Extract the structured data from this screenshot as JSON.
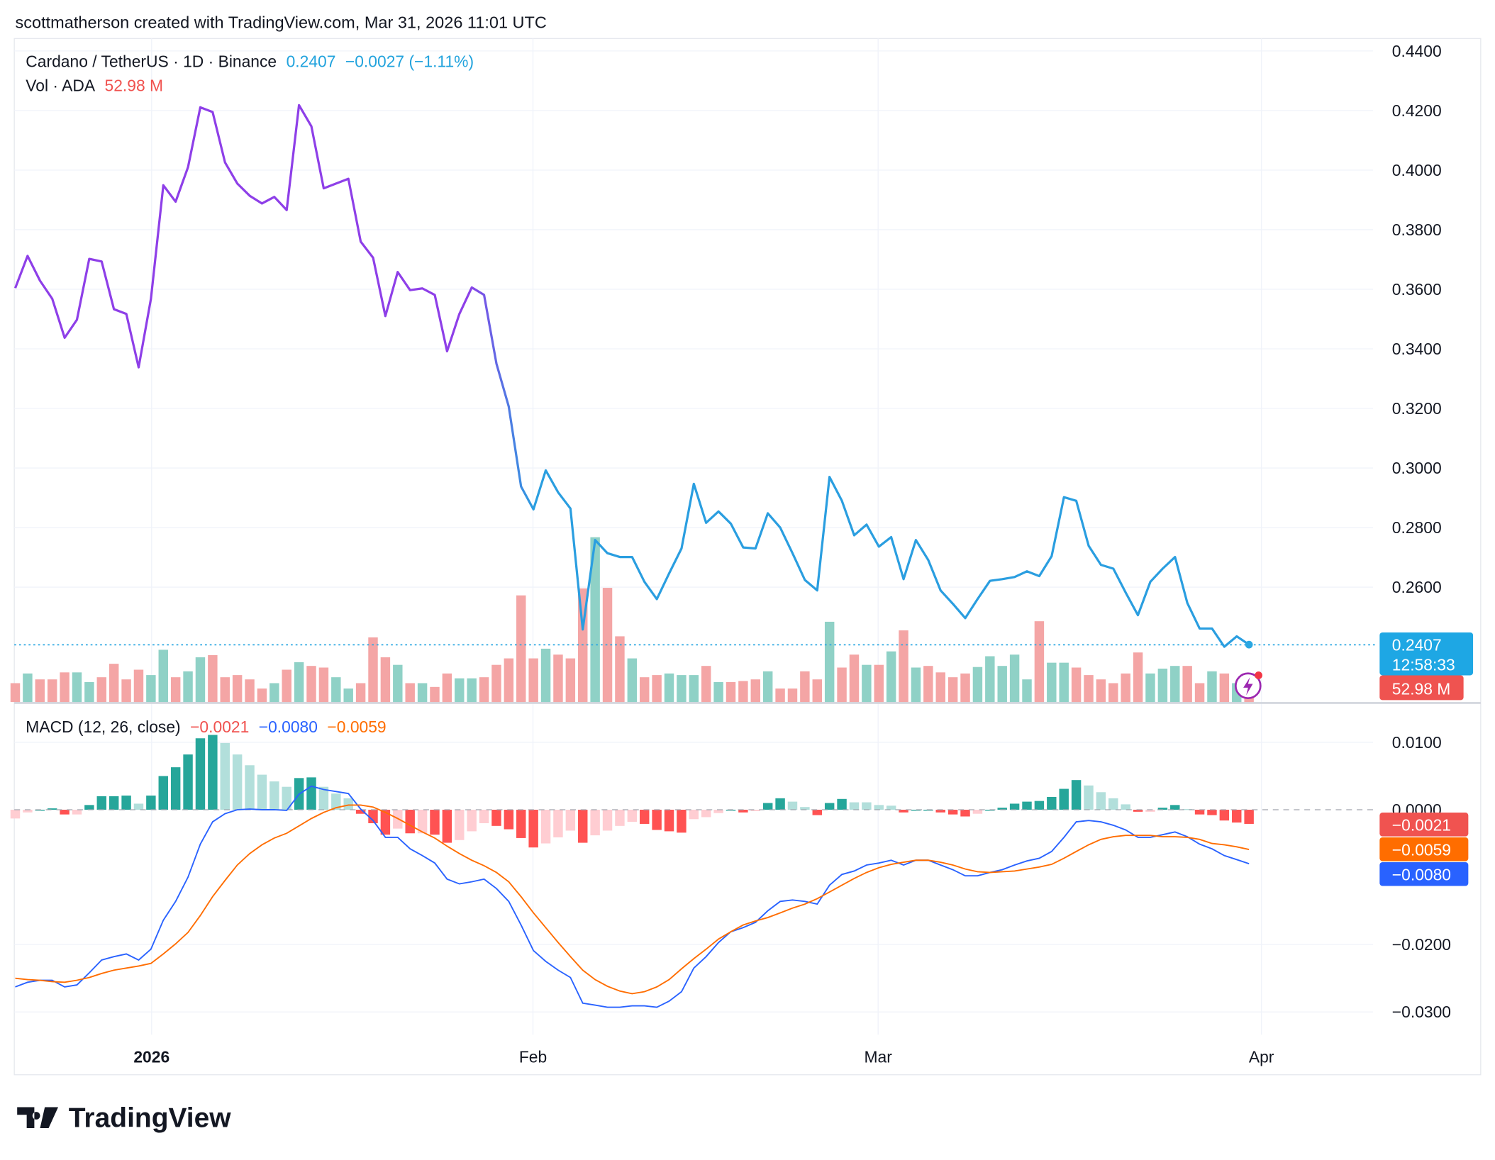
{
  "header": {
    "attribution": "scottmatherson created with TradingView.com, Mar 31, 2026 11:01 UTC"
  },
  "legend": {
    "symbol": "Cardano / TetherUS · 1D · Binance",
    "last": "0.2407",
    "change": "−0.0027 (−1.11%)",
    "vol_label": "Vol · ADA",
    "vol_value": "52.98 M"
  },
  "macd_legend": {
    "label": "MACD (12, 26, close)",
    "hist": "−0.0021",
    "macd": "−0.0080",
    "signal": "−0.0059"
  },
  "price_axis": [
    "0.4400",
    "0.4200",
    "0.4000",
    "0.3800",
    "0.3600",
    "0.3400",
    "0.3200",
    "0.3000",
    "0.2800",
    "0.2600"
  ],
  "macd_axis": [
    "0.0100",
    "0.0000",
    "−0.0200",
    "−0.0300"
  ],
  "tags": {
    "price": "0.2407",
    "countdown": "12:58:33",
    "volume": "52.98 M",
    "hist": "−0.0021",
    "signal": "−0.0059",
    "macd": "−0.0080"
  },
  "time_axis": {
    "y2026": "2026",
    "feb": "Feb",
    "mar": "Mar",
    "apr": "Apr"
  },
  "footer": {
    "logo": "TradingView"
  },
  "colors": {
    "price_early": "#8e3fe8",
    "price_late": "#2a9ee0",
    "up_vol": "#8fd1c6",
    "down_vol": "#f4a5a5",
    "macd": "#2962ff",
    "signal": "#ff6d00",
    "hist_up_strong": "#26a69a",
    "hist_up_weak": "#b2dfdb",
    "hist_down_strong": "#ff5252",
    "hist_down_weak": "#ffcdd2"
  },
  "chart_data": {
    "type": "line",
    "x_range": [
      "2025-12-21",
      "2026-03-31"
    ],
    "price_ylim": [
      0.24,
      0.44
    ],
    "close": [
      0.3604,
      0.3712,
      0.3629,
      0.3568,
      0.3437,
      0.3498,
      0.3702,
      0.3693,
      0.3533,
      0.3517,
      0.3338,
      0.3568,
      0.3949,
      0.3894,
      0.401,
      0.4211,
      0.4195,
      0.4026,
      0.3955,
      0.3914,
      0.3888,
      0.391,
      0.3866,
      0.4218,
      0.4147,
      0.3939,
      0.3955,
      0.3971,
      0.376,
      0.3706,
      0.351,
      0.3658,
      0.3597,
      0.3603,
      0.3581,
      0.3392,
      0.3517,
      0.3606,
      0.3581,
      0.335,
      0.3206,
      0.2938,
      0.2861,
      0.2992,
      0.2918,
      0.2864,
      0.2458,
      0.2758,
      0.2714,
      0.2701,
      0.2701,
      0.2618,
      0.256,
      0.2646,
      0.273,
      0.2947,
      0.2816,
      0.2854,
      0.2813,
      0.2733,
      0.273,
      0.2848,
      0.28,
      0.2714,
      0.2624,
      0.2589,
      0.297,
      0.289,
      0.2774,
      0.281,
      0.2736,
      0.2768,
      0.2627,
      0.2758,
      0.2691,
      0.2589,
      0.2544,
      0.2496,
      0.256,
      0.2621,
      0.2627,
      0.2634,
      0.2653,
      0.2637,
      0.2704,
      0.2902,
      0.289,
      0.2739,
      0.2675,
      0.2662,
      0.2582,
      0.2506,
      0.2618,
      0.2662,
      0.2701,
      0.2547,
      0.2461,
      0.2461,
      0.24,
      0.2435,
      0.2407
    ],
    "volume_M": [
      35,
      53,
      42,
      42,
      55,
      55,
      37,
      46,
      71,
      42,
      60,
      50,
      97,
      46,
      57,
      83,
      87,
      46,
      50,
      42,
      25,
      35,
      60,
      74,
      67,
      64,
      46,
      25,
      35,
      120,
      83,
      69,
      35,
      35,
      28,
      53,
      44,
      44,
      46,
      69,
      81,
      198,
      81,
      99,
      88,
      81,
      211,
      306,
      212,
      122,
      81,
      46,
      50,
      53,
      50,
      50,
      67,
      37,
      37,
      39,
      42,
      57,
      25,
      25,
      57,
      42,
      149,
      64,
      88,
      69,
      69,
      94,
      133,
      64,
      67,
      55,
      46,
      53,
      65,
      85,
      67,
      88,
      42,
      150,
      73,
      73,
      64,
      50,
      42,
      35,
      53,
      92,
      53,
      62,
      67,
      67,
      35,
      57,
      53,
      35,
      52.98
    ],
    "macd": [
      -0.0263,
      -0.0256,
      -0.0253,
      -0.0253,
      -0.0263,
      -0.026,
      -0.0242,
      -0.0223,
      -0.0218,
      -0.0214,
      -0.0223,
      -0.0207,
      -0.0164,
      -0.0136,
      -0.01,
      -0.0051,
      -0.0018,
      -0.0006,
      0.0,
      0.0001,
      0.0,
      0.0,
      -0.0001,
      0.0023,
      0.0035,
      0.003,
      0.0027,
      0.0024,
      0.0001,
      -0.0016,
      -0.0041,
      -0.0041,
      -0.0058,
      -0.0068,
      -0.0079,
      -0.0103,
      -0.011,
      -0.0107,
      -0.0103,
      -0.0117,
      -0.0136,
      -0.0171,
      -0.0209,
      -0.0225,
      -0.0238,
      -0.0249,
      -0.0287,
      -0.029,
      -0.0293,
      -0.0293,
      -0.0291,
      -0.0291,
      -0.0293,
      -0.0284,
      -0.027,
      -0.0235,
      -0.0218,
      -0.0197,
      -0.0181,
      -0.0175,
      -0.0167,
      -0.015,
      -0.0136,
      -0.0134,
      -0.0136,
      -0.014,
      -0.0112,
      -0.0096,
      -0.0091,
      -0.0082,
      -0.0079,
      -0.0075,
      -0.0082,
      -0.0075,
      -0.0075,
      -0.0082,
      -0.0089,
      -0.0098,
      -0.0098,
      -0.0093,
      -0.0089,
      -0.0082,
      -0.0076,
      -0.0072,
      -0.0062,
      -0.0041,
      -0.0018,
      -0.0016,
      -0.0018,
      -0.0023,
      -0.003,
      -0.0041,
      -0.0041,
      -0.0037,
      -0.0033,
      -0.004,
      -0.0051,
      -0.0058,
      -0.0068,
      -0.0074,
      -0.008
    ],
    "signal": [
      -0.025,
      -0.0252,
      -0.0253,
      -0.0255,
      -0.0256,
      -0.0253,
      -0.0249,
      -0.0243,
      -0.0238,
      -0.0235,
      -0.0232,
      -0.0228,
      -0.0214,
      -0.0199,
      -0.0182,
      -0.0157,
      -0.0129,
      -0.0105,
      -0.0082,
      -0.0065,
      -0.0052,
      -0.0042,
      -0.0035,
      -0.0024,
      -0.0013,
      -0.0004,
      0.0003,
      0.0007,
      0.0007,
      0.0004,
      -0.0004,
      -0.0013,
      -0.0023,
      -0.0033,
      -0.0042,
      -0.0054,
      -0.0065,
      -0.0075,
      -0.0083,
      -0.0093,
      -0.0107,
      -0.0129,
      -0.0153,
      -0.0175,
      -0.0197,
      -0.0218,
      -0.0238,
      -0.0252,
      -0.0262,
      -0.0269,
      -0.0273,
      -0.027,
      -0.0263,
      -0.0252,
      -0.0236,
      -0.0221,
      -0.0207,
      -0.0192,
      -0.0181,
      -0.0171,
      -0.0165,
      -0.016,
      -0.0153,
      -0.0146,
      -0.014,
      -0.0132,
      -0.0122,
      -0.0112,
      -0.0102,
      -0.0093,
      -0.0086,
      -0.0081,
      -0.0078,
      -0.0075,
      -0.0075,
      -0.0078,
      -0.0082,
      -0.0088,
      -0.0092,
      -0.0093,
      -0.0092,
      -0.0091,
      -0.0088,
      -0.0085,
      -0.0081,
      -0.0072,
      -0.0062,
      -0.0052,
      -0.0044,
      -0.004,
      -0.0038,
      -0.0038,
      -0.0038,
      -0.004,
      -0.004,
      -0.0041,
      -0.0044,
      -0.005,
      -0.0052,
      -0.0055,
      -0.0059
    ],
    "macd_ylim": [
      -0.032,
      0.012
    ]
  }
}
